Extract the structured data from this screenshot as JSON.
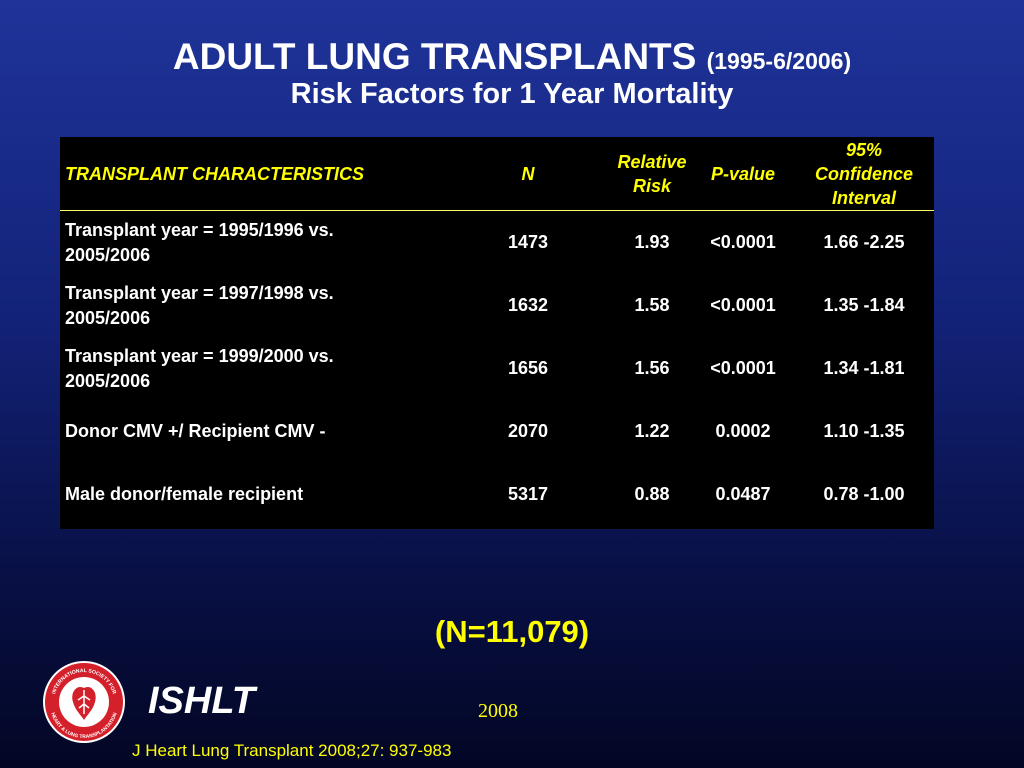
{
  "slide": {
    "title_main": "ADULT LUNG TRANSPLANTS",
    "title_range": "(1995-6/2006)",
    "subtitle": "Risk Factors for 1 Year Mortality",
    "total": "(N=11,079)",
    "org": "ISHLT",
    "year": "2008",
    "citation": "J Heart Lung Transplant 2008;27: 937-983",
    "logo_text_top": "INTERNATIONAL SOCIETY FOR",
    "logo_text_bottom": "HEART & LUNG TRANSPLANTATION"
  },
  "table": {
    "headers": {
      "characteristic": "TRANSPLANT CHARACTERISTICS",
      "n": "N",
      "rr_line1": "Relative",
      "rr_line2": "Risk",
      "p": "P-value",
      "ci_line1": "95%",
      "ci_line2": "Confidence",
      "ci_line3": "Interval"
    },
    "rows": [
      {
        "characteristic_line1": "Transplant year = 1995/1996 vs.",
        "characteristic_line2": "2005/2006",
        "n": "1473",
        "rr": "1.93",
        "p": "<0.0001",
        "ci": "1.66 -2.25"
      },
      {
        "characteristic_line1": "Transplant year = 1997/1998 vs.",
        "characteristic_line2": "2005/2006",
        "n": "1632",
        "rr": "1.58",
        "p": "<0.0001",
        "ci": "1.35 -1.84"
      },
      {
        "characteristic_line1": "Transplant year = 1999/2000 vs.",
        "characteristic_line2": "2005/2006",
        "n": "1656",
        "rr": "1.56",
        "p": "<0.0001",
        "ci": "1.34 -1.81"
      },
      {
        "characteristic_line1": "Donor CMV +/ Recipient CMV -",
        "characteristic_line2": "",
        "n": "2070",
        "rr": "1.22",
        "p": "0.0002",
        "ci": "1.10 -1.35"
      },
      {
        "characteristic_line1": "Male donor/female recipient",
        "characteristic_line2": "",
        "n": "5317",
        "rr": "0.88",
        "p": "0.0487",
        "ci": "0.78 -1.00"
      }
    ]
  }
}
